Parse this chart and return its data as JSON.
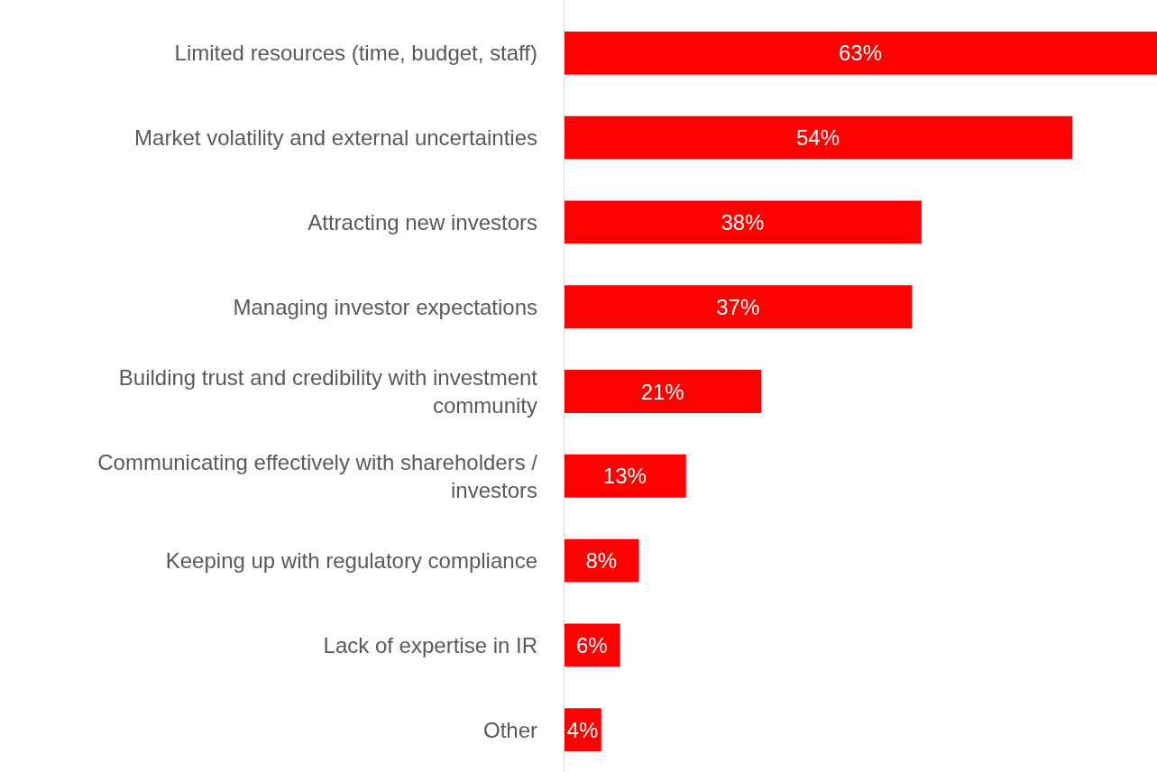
{
  "chart_data": {
    "type": "bar",
    "orientation": "horizontal",
    "categories": [
      "Limited resources (time, budget, staff)",
      "Market volatility and external uncertainties",
      "Attracting new investors",
      "Managing investor expectations",
      "Building trust and credibility with investment community",
      "Communicating effectively with shareholders / investors",
      "Keeping up with regulatory compliance",
      "Lack of expertise in IR",
      "Other"
    ],
    "values": [
      63,
      54,
      38,
      37,
      21,
      13,
      8,
      6,
      4
    ],
    "value_labels": [
      "63%",
      "54%",
      "38%",
      "37%",
      "21%",
      "13%",
      "8%",
      "6%",
      "4%"
    ],
    "color": "#ff0000",
    "tick_labels": "y"
  }
}
